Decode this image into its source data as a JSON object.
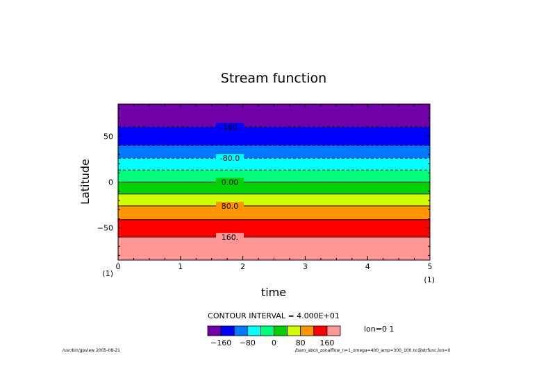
{
  "chart_data": {
    "type": "contour",
    "title": "Stream function",
    "xlabel": "time",
    "ylabel": "Latitude",
    "xlim": [
      0,
      5
    ],
    "ylim": [
      -85,
      85
    ],
    "x_ticks": [
      "0",
      "1",
      "2",
      "3",
      "4",
      "5"
    ],
    "y_ticks": [
      "50",
      "0",
      "−50"
    ],
    "x_unit_left": "(1)",
    "x_unit_right": "(1)",
    "band_boundaries_latitude": [
      85,
      60,
      40,
      26,
      13,
      0,
      -13,
      -26,
      -41,
      -60,
      -85
    ],
    "band_colors": [
      "#7000a8",
      "#0000ff",
      "#0078ff",
      "#00ffff",
      "#00ff78",
      "#00d200",
      "#d2ff00",
      "#ff9600",
      "#ff0000",
      "#ff9696"
    ],
    "contour_lines": [
      {
        "latitude": 60,
        "dashed": true
      },
      {
        "latitude": 40,
        "dashed": true
      },
      {
        "latitude": 26,
        "dashed": true
      },
      {
        "latitude": 13,
        "dashed": true
      },
      {
        "latitude": 0,
        "dashed": false
      },
      {
        "latitude": -13,
        "dashed": false
      },
      {
        "latitude": -26,
        "dashed": false
      },
      {
        "latitude": -41,
        "dashed": false
      },
      {
        "latitude": -60,
        "dashed": false
      }
    ],
    "contour_labels": [
      {
        "text": "-160.",
        "latitude": 60
      },
      {
        "text": "-80.0",
        "latitude": 26
      },
      {
        "text": "0.00",
        "latitude": 0
      },
      {
        "text": "80.0",
        "latitude": -26
      },
      {
        "text": "160.",
        "latitude": -60
      }
    ],
    "contour_interval_text": "CONTOUR INTERVAL = 4.000E+01",
    "colorbar": {
      "colors": [
        "#7000a8",
        "#0000ff",
        "#0078ff",
        "#00ffff",
        "#00ff78",
        "#00d200",
        "#d2ff00",
        "#ff9600",
        "#ff0000",
        "#ff9696"
      ],
      "tick_labels": [
        "−160",
        "−80",
        "0",
        "80",
        "160"
      ]
    },
    "slice_label": "lon=0 1"
  },
  "footer": {
    "left": "/usr/bin/gpview  2005-08-21",
    "right": "./baro_abcn_zonalflow_n=1_omega=400_amp=300_100.nc@strfunc,lon=0"
  }
}
